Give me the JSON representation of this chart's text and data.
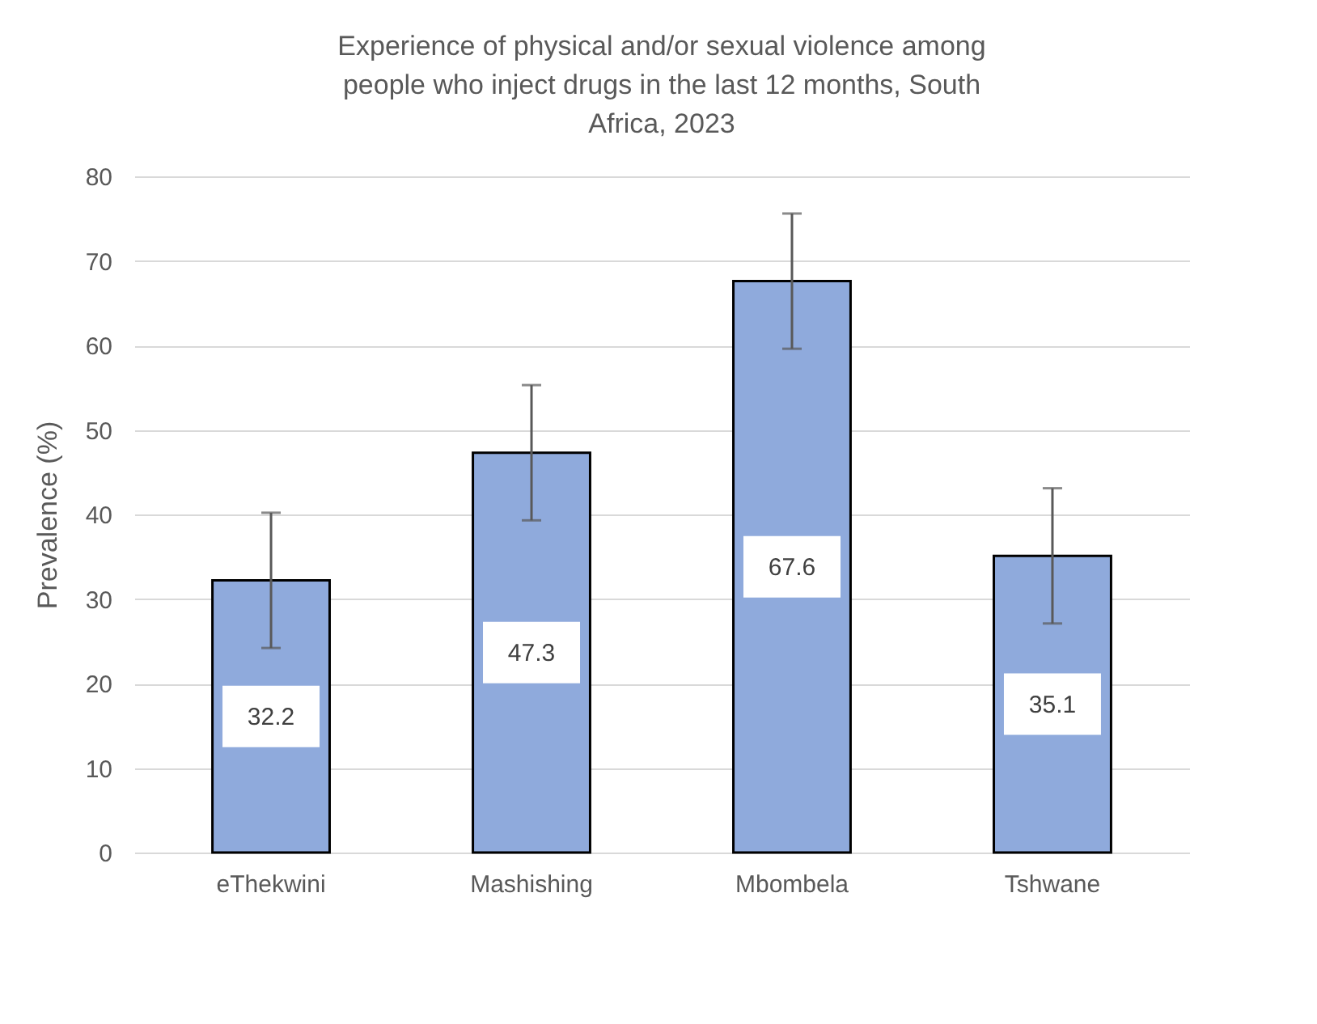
{
  "chart_data": {
    "type": "bar",
    "title": "Experience of physical and/or sexual violence among people who inject drugs  in the last 12 months, South Africa, 2023",
    "ylabel": "Prevalence (%)",
    "categories": [
      "eThekwini",
      "Mashishing",
      "Mbombela",
      "Tshwane"
    ],
    "values": [
      32.2,
      47.3,
      67.6,
      35.1
    ],
    "errors": [
      8,
      8,
      8,
      8
    ],
    "color": "#8faadc",
    "ylim": [
      0,
      80
    ],
    "yticks": [
      0,
      10,
      20,
      30,
      40,
      50,
      60,
      70,
      80
    ],
    "grid": "y",
    "data_labels": true
  }
}
